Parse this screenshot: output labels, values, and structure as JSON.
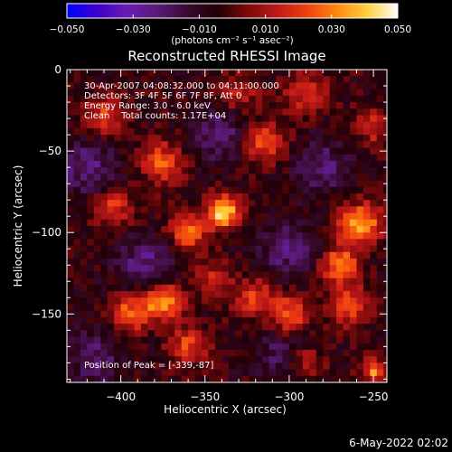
{
  "chart_data": {
    "type": "heatmap",
    "title": "Reconstructed RHESSI Image",
    "xlabel": "Heliocentric X (arcsec)",
    "ylabel": "Heliocentric Y (arcsec)",
    "xlim": [
      -432,
      -242
    ],
    "ylim": [
      -192,
      0
    ],
    "xticks": [
      -400,
      -350,
      -300,
      -250
    ],
    "yticks": [
      0,
      -50,
      -100,
      -150
    ],
    "xtick_labels": [
      "−400",
      "−350",
      "−300",
      "−250"
    ],
    "ytick_labels": [
      "0",
      "−50",
      "−100",
      "−150"
    ],
    "colorbar": {
      "range": [
        -0.05,
        0.05
      ],
      "ticks": [
        -0.05,
        -0.03,
        -0.01,
        0.01,
        0.03,
        0.05
      ],
      "tick_labels": [
        "−0.050",
        "−0.030",
        "−0.010",
        "0.010",
        "0.030",
        "0.050"
      ],
      "label": "(photons cm⁻² s⁻¹ asec⁻²)",
      "stops": [
        "#0000ff",
        "#3c00c8",
        "#6a1cb4",
        "#5a1a78",
        "#3a0a30",
        "#200008",
        "#7a0a0a",
        "#c01818",
        "#f04010",
        "#ff8a10",
        "#ffd040",
        "#ffffff"
      ]
    },
    "annotations": [
      "30-Apr-2007 04:08:32.000 to 04:11:00.000",
      "Detectors: 3F 4F 5F 6F 7F 8F, Att 0",
      "Energy Range: 3.0 - 6.0 keV",
      "Clean    Total counts: 1.17E+04"
    ],
    "peak_text": "Position of Peak = [-339,-87]",
    "peak": [
      -339,
      -87
    ],
    "sources": [
      {
        "x": -339,
        "y": -87,
        "value": 0.05,
        "sigma": 7
      },
      {
        "x": -375,
        "y": -142,
        "value": 0.042,
        "sigma": 8
      },
      {
        "x": -395,
        "y": -150,
        "value": 0.032,
        "sigma": 8
      },
      {
        "x": -360,
        "y": -100,
        "value": 0.03,
        "sigma": 8
      },
      {
        "x": -375,
        "y": -57,
        "value": 0.028,
        "sigma": 9
      },
      {
        "x": -410,
        "y": -28,
        "value": 0.024,
        "sigma": 9
      },
      {
        "x": -405,
        "y": -85,
        "value": 0.024,
        "sigma": 8
      },
      {
        "x": -258,
        "y": -95,
        "value": 0.04,
        "sigma": 9
      },
      {
        "x": -270,
        "y": -120,
        "value": 0.034,
        "sigma": 8
      },
      {
        "x": -265,
        "y": -145,
        "value": 0.03,
        "sigma": 8
      },
      {
        "x": -300,
        "y": -150,
        "value": 0.03,
        "sigma": 8
      },
      {
        "x": -320,
        "y": -140,
        "value": 0.026,
        "sigma": 8
      },
      {
        "x": -315,
        "y": -45,
        "value": 0.028,
        "sigma": 9
      },
      {
        "x": -290,
        "y": -15,
        "value": 0.022,
        "sigma": 9
      },
      {
        "x": -250,
        "y": -35,
        "value": 0.02,
        "sigma": 8
      },
      {
        "x": -330,
        "y": -15,
        "value": 0.02,
        "sigma": 8
      },
      {
        "x": -360,
        "y": -170,
        "value": 0.026,
        "sigma": 8
      },
      {
        "x": -250,
        "y": -185,
        "value": 0.034,
        "sigma": 5
      },
      {
        "x": -290,
        "y": -180,
        "value": 0.02,
        "sigma": 7
      },
      {
        "x": -345,
        "y": -130,
        "value": 0.02,
        "sigma": 8
      },
      {
        "x": -385,
        "y": -120,
        "value": -0.02,
        "sigma": 12
      },
      {
        "x": -420,
        "y": -60,
        "value": -0.02,
        "sigma": 12
      },
      {
        "x": -340,
        "y": -40,
        "value": -0.018,
        "sigma": 12
      },
      {
        "x": -300,
        "y": -110,
        "value": -0.018,
        "sigma": 12
      },
      {
        "x": -280,
        "y": -60,
        "value": -0.016,
        "sigma": 12
      },
      {
        "x": -415,
        "y": -175,
        "value": -0.016,
        "sigma": 12
      },
      {
        "x": -305,
        "y": -175,
        "value": -0.014,
        "sigma": 11
      }
    ]
  },
  "footer": {
    "date": "6-May-2022 02:02"
  }
}
